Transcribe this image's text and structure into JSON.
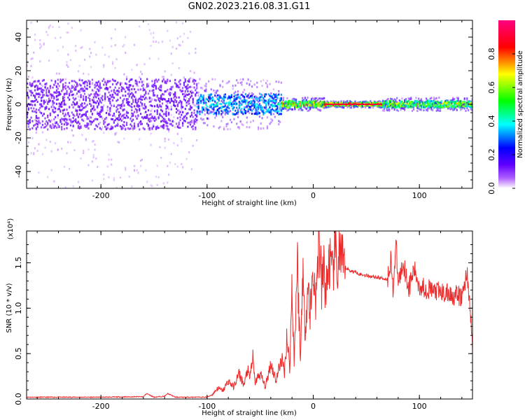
{
  "figure_title": "GN02.2023.216.08.31.G11",
  "chart_data": [
    {
      "type": "heatmap",
      "title": "",
      "xlabel": "Height of straight line (km)",
      "ylabel": "Frequency (Hz)",
      "xlim": [
        -270,
        150
      ],
      "ylim": [
        -50,
        50
      ],
      "xticks": [
        -200,
        -100,
        0,
        100
      ],
      "yticks": [
        -40,
        -20,
        0,
        20,
        40
      ],
      "colorbar": {
        "label": "Normalized spectral amplitude",
        "range": [
          0,
          1
        ],
        "ticks": [
          0.0,
          0.2,
          0.4,
          0.6,
          0.8
        ],
        "tick_labels": [
          "0.0",
          "0.2",
          "0.4",
          "0.6",
          "0.8"
        ],
        "colormap": [
          "#ffffff",
          "#8000ff",
          "#0000ff",
          "#00ffff",
          "#00ff00",
          "#ffff00",
          "#ff0000",
          "#ff0080"
        ]
      },
      "bands": [
        {
          "x_range": [
            -270,
            -110
          ],
          "core_halfwidth_hz": 15,
          "spread_halfwidth_hz": 50,
          "amplitude": 0.15
        },
        {
          "x_range": [
            -110,
            -30
          ],
          "core_halfwidth_hz": 6,
          "spread_halfwidth_hz": 15,
          "amplitude": 0.45
        },
        {
          "x_range": [
            -30,
            10
          ],
          "core_halfwidth_hz": 2,
          "spread_halfwidth_hz": 4,
          "amplitude": 0.85
        },
        {
          "x_range": [
            10,
            65
          ],
          "core_halfwidth_hz": 1,
          "spread_halfwidth_hz": 2,
          "amplitude": 1.0
        },
        {
          "x_range": [
            65,
            150
          ],
          "core_halfwidth_hz": 2,
          "spread_halfwidth_hz": 4,
          "amplitude": 0.75
        }
      ]
    },
    {
      "type": "line",
      "title": "",
      "xlabel": "Height of straight line (km)",
      "ylabel": "SNR (10 * v/v)",
      "y_multiplier": "(x10⁴)",
      "xlim": [
        -270,
        150
      ],
      "ylim": [
        0,
        1.85
      ],
      "xticks": [
        -200,
        -100,
        0,
        100
      ],
      "yticks": [
        0.0,
        0.5,
        1.0,
        1.5
      ],
      "ytick_labels": [
        "0.0",
        "0.5",
        "1.0",
        "1.5"
      ],
      "series": [
        {
          "color": "#ee2a2a",
          "x": [
            -270,
            -250,
            -200,
            -160,
            -157,
            -150,
            -140,
            -137,
            -130,
            -110,
            -100,
            -95,
            -90,
            -85,
            -80,
            -75,
            -70,
            -65,
            -62,
            -60,
            -57,
            -55,
            -50,
            -45,
            -40,
            -35,
            -30,
            -27,
            -25,
            -22,
            -20,
            -18,
            -15,
            -12,
            -10,
            -8,
            -5,
            -3,
            0,
            3,
            5,
            8,
            10,
            12,
            15,
            18,
            20,
            22,
            25,
            28,
            30,
            35,
            40,
            45,
            50,
            60,
            70,
            73,
            75,
            78,
            80,
            85,
            90,
            95,
            100,
            110,
            120,
            130,
            140,
            145,
            150
          ],
          "y": [
            0.02,
            0.02,
            0.02,
            0.025,
            0.06,
            0.02,
            0.03,
            0.06,
            0.02,
            0.02,
            0.02,
            0.05,
            0.12,
            0.09,
            0.2,
            0.13,
            0.28,
            0.15,
            0.33,
            0.22,
            0.46,
            0.18,
            0.28,
            0.13,
            0.4,
            0.2,
            0.45,
            0.3,
            0.7,
            0.34,
            1.3,
            0.4,
            1.55,
            0.38,
            1.5,
            0.75,
            1.25,
            0.95,
            1.4,
            1.05,
            1.85,
            1.2,
            1.45,
            1.15,
            1.55,
            1.3,
            1.72,
            1.4,
            1.62,
            1.42,
            1.45,
            1.41,
            1.4,
            1.37,
            1.36,
            1.34,
            1.32,
            1.55,
            1.2,
            1.7,
            1.28,
            1.5,
            1.22,
            1.42,
            1.25,
            1.2,
            1.17,
            1.15,
            1.12,
            1.4,
            0.6
          ]
        }
      ]
    }
  ]
}
